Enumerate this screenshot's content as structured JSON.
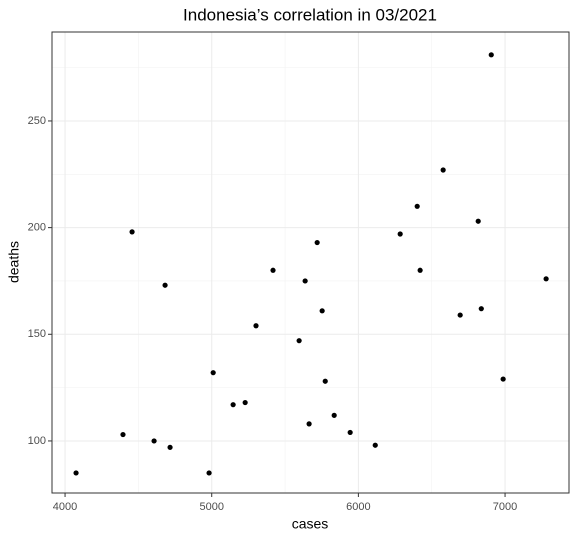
{
  "chart_data": {
    "type": "scatter",
    "title": "Indonesia’s correlation in 03/2021",
    "x_label": "cases",
    "y_label": "deaths",
    "color": "#000000",
    "x": [
      4075,
      4395,
      4457,
      4607,
      4682,
      4716,
      4982,
      5010,
      5146,
      5228,
      5302,
      5418,
      5596,
      5637,
      5664,
      5719,
      5753,
      5774,
      5835,
      5944,
      6115,
      6285,
      6401,
      6421,
      6578,
      6694,
      6817,
      6838,
      6906,
      6987,
      7280
    ],
    "values": [
      85,
      103,
      198,
      100,
      173,
      97,
      85,
      132,
      117,
      118,
      154,
      180,
      147,
      175,
      108,
      193,
      161,
      128,
      112,
      104,
      98,
      197,
      210,
      180,
      227,
      159,
      203,
      162,
      281,
      129,
      176
    ],
    "xlim": [
      3911,
      7436
    ],
    "ylim": [
      75.6,
      291.7
    ],
    "xticks": [
      4000,
      5000,
      6000,
      7000
    ],
    "yticks": [
      100,
      150,
      200,
      250
    ],
    "xminor": [
      4500,
      5500,
      6500
    ],
    "yminor": [
      125,
      175,
      225,
      275
    ],
    "grid": true
  }
}
